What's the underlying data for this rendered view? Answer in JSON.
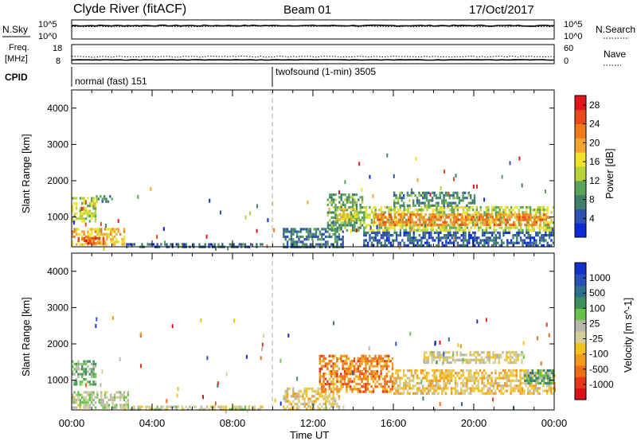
{
  "header": {
    "title": "Clyde River (fitACF)",
    "beam": "Beam 01",
    "date": "17/Oct/2017"
  },
  "strip_nsky": {
    "left_label": "N.Sky",
    "left_ticks": [
      "10^5",
      "10^0"
    ],
    "right_ticks": [
      "10^5",
      "10^0"
    ],
    "right_label": "N.Search"
  },
  "strip_freq": {
    "left_label_1": "Freq.",
    "left_label_2": "[MHz]",
    "left_ticks": [
      "18",
      "8"
    ],
    "right_ticks": [
      "60",
      "0"
    ],
    "right_label": "Nave"
  },
  "cpid": {
    "label": "CPID",
    "segments": [
      {
        "name": "normal (fast) 151",
        "start_hour": 0
      },
      {
        "name": "twofsound (1-min) 3505",
        "start_hour": 10
      }
    ]
  },
  "x_axis": {
    "label": "Time UT",
    "ticks": [
      "00:00",
      "04:00",
      "08:00",
      "12:00",
      "16:00",
      "20:00",
      "00:00"
    ]
  },
  "power_panel": {
    "ylabel": "Slant Range [km]",
    "yticks": [
      "1000",
      "2000",
      "3000",
      "4000"
    ],
    "colorbar_label": "Power [dB]",
    "colorbar_ticks": [
      "4",
      "8",
      "12",
      "16",
      "20",
      "24",
      "28"
    ],
    "colors": [
      "#0a2bd6",
      "#2f52b0",
      "#3f7f6c",
      "#5aa35a",
      "#b6d13a",
      "#f1e12b",
      "#f2a531",
      "#ef7a1e",
      "#e94a1c",
      "#e0161a"
    ]
  },
  "velocity_panel": {
    "ylabel": "Slant Range [km]",
    "yticks": [
      "1000",
      "2000",
      "3000",
      "4000"
    ],
    "colorbar_label": "Velocity [m s^-1]",
    "colorbar_ticks": [
      "1000",
      "500",
      "100",
      "25",
      "-25",
      "-100",
      "-500",
      "-1000"
    ],
    "colors": [
      "#1432c8",
      "#2a4fb8",
      "#2e6f8c",
      "#3f8f5a",
      "#65c24a",
      "#b7b7a8",
      "#d4cf9a",
      "#f4c21e",
      "#f29a1b",
      "#ee6d18",
      "#e5381a",
      "#d8101a"
    ]
  },
  "chart_data": [
    {
      "type": "line",
      "title": "N.Sky / N.Search",
      "x_range_hours": [
        0,
        24
      ],
      "ylim_log10": [
        0,
        5
      ],
      "series": [
        {
          "name": "N.Sky",
          "style": "solid",
          "y_log10": 3.5
        },
        {
          "name": "N.Search",
          "style": "dotted",
          "y_log10": 3.3
        }
      ]
    },
    {
      "type": "line",
      "title": "Freq. / Nave",
      "x_range_hours": [
        0,
        24
      ],
      "freq_ylim": [
        8,
        18
      ],
      "nave_ylim": [
        0,
        60
      ],
      "series": [
        {
          "name": "Freq. [MHz]",
          "style": "solid",
          "value": 10
        },
        {
          "name": "Nave",
          "style": "dotted",
          "value": 22
        }
      ]
    },
    {
      "type": "heatmap",
      "title": "Power [dB]",
      "x_range_hours": [
        0,
        24
      ],
      "ylim": [
        180,
        4500
      ],
      "zlim": [
        0,
        30
      ],
      "regions": [
        {
          "t0": 0.0,
          "t1": 1.2,
          "r0": 900,
          "r1": 1550,
          "z": 14
        },
        {
          "t0": 0.0,
          "t1": 2.6,
          "r0": 250,
          "r1": 700,
          "z": 18
        },
        {
          "t0": 0.3,
          "t1": 1.6,
          "r0": 250,
          "r1": 450,
          "z": 24
        },
        {
          "t0": 1.2,
          "t1": 2.0,
          "r0": 1450,
          "r1": 1600,
          "z": 9
        },
        {
          "t0": 2.6,
          "t1": 9.5,
          "r0": 190,
          "r1": 280,
          "z": 6
        },
        {
          "t0": 10.5,
          "t1": 13.5,
          "r0": 190,
          "r1": 700,
          "z": 7
        },
        {
          "t0": 12.7,
          "t1": 14.5,
          "r0": 600,
          "r1": 1650,
          "z": 10
        },
        {
          "t0": 13.2,
          "t1": 14.2,
          "r0": 900,
          "r1": 1250,
          "z": 16
        },
        {
          "t0": 14.5,
          "t1": 24.0,
          "r0": 600,
          "r1": 1300,
          "z": 14
        },
        {
          "t0": 15.0,
          "t1": 23.7,
          "r0": 750,
          "r1": 1100,
          "z": 22
        },
        {
          "t0": 16.0,
          "t1": 20.0,
          "r0": 1300,
          "r1": 1700,
          "z": 9
        },
        {
          "t0": 14.5,
          "t1": 24.0,
          "r0": 190,
          "r1": 600,
          "z": 5
        }
      ]
    },
    {
      "type": "heatmap",
      "title": "Velocity [m s^-1]",
      "x_range_hours": [
        0,
        24
      ],
      "ylim": [
        180,
        4500
      ],
      "zlim": [
        -1000,
        1000
      ],
      "regions": [
        {
          "t0": 0.0,
          "t1": 1.2,
          "r0": 900,
          "r1": 1550,
          "z": 200
        },
        {
          "t0": 0.0,
          "t1": 2.8,
          "r0": 250,
          "r1": 700,
          "z": 60
        },
        {
          "t0": 2.6,
          "t1": 9.5,
          "r0": 190,
          "r1": 300,
          "z": 0
        },
        {
          "t0": 10.5,
          "t1": 13.3,
          "r0": 190,
          "r1": 800,
          "z": -150
        },
        {
          "t0": 12.3,
          "t1": 16.0,
          "r0": 700,
          "r1": 1700,
          "z": -500
        },
        {
          "t0": 16.0,
          "t1": 24.0,
          "r0": 650,
          "r1": 1300,
          "z": -200
        },
        {
          "t0": 17.5,
          "t1": 22.5,
          "r0": 1500,
          "r1": 1800,
          "z": -60
        },
        {
          "t0": 22.5,
          "t1": 24.0,
          "r0": 900,
          "r1": 1300,
          "z": 300
        }
      ]
    }
  ]
}
